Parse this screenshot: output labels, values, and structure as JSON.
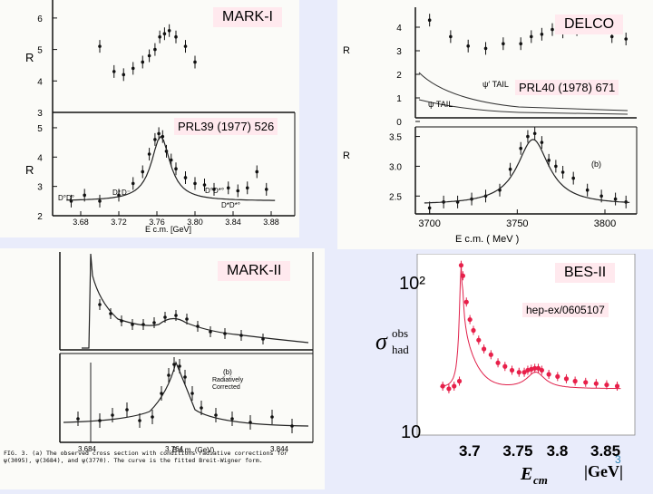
{
  "experiments": {
    "mark1": {
      "label": "MARK-I",
      "reference": "PRL39 (1977) 526",
      "y_axis_symbol": "R",
      "upper_ticks": [
        "6",
        "5",
        "4",
        "3"
      ],
      "lower_ticks": [
        "5",
        "4",
        "3",
        "2"
      ],
      "x_ticks": [
        "3.68",
        "3.72",
        "3.76",
        "3.80",
        "3.84",
        "3.88"
      ],
      "x_label": "E c.m. [GeV]",
      "threshold_labels": [
        "D°D°",
        "D⁺D⁻",
        "D°D*°",
        "D*D*°"
      ]
    },
    "delco": {
      "label": "DELCO",
      "reference": "PRL40 (1978) 671",
      "y_axis_symbol": "R",
      "upper_ticks": [
        "4",
        "3",
        "2",
        "1",
        "0"
      ],
      "tail_labels": [
        "ψ′ TAIL",
        "ψ TAIL"
      ],
      "lower_ticks": [
        "3.5",
        "3.0",
        "2.5"
      ],
      "panel_tag": "(b)",
      "x_ticks": [
        "3700",
        "3750",
        "3800"
      ],
      "x_label": "E c.m.  ( MeV )"
    },
    "mark2": {
      "label": "MARK-II",
      "panel_tag": "(b)",
      "corrected_note": "Radiatively Corrected",
      "x_ticks": [
        "3.684",
        "3.764",
        "3.844"
      ],
      "x_label": "E c.m.  (GeV)",
      "caption": "FIG. 3. (a) The observed cross section with conditions radiative corrections for ψ(3095), ψ(3684), and ψ(3770). The curve is the fitted Breit-Wigner form."
    },
    "bes2": {
      "label": "BES-II",
      "reference": "hep-ex/0605107",
      "y_axis_label": "σ",
      "y_sup": "obs",
      "y_sub": "had",
      "y_ticks": [
        "10²",
        "10"
      ],
      "x_ticks": [
        "3.7",
        "3.75",
        "3.8",
        "3.85"
      ],
      "x_label": "E",
      "x_sub": "cm",
      "x_unit": "|GeV|",
      "page_number": "3"
    }
  },
  "chart_data": [
    {
      "type": "scatter",
      "panel": "MARK-I lower",
      "xlim": [
        3.66,
        3.9
      ],
      "ylim": [
        2,
        5.4
      ],
      "x": [
        3.67,
        3.684,
        3.7,
        3.72,
        3.735,
        3.745,
        3.752,
        3.758,
        3.762,
        3.766,
        3.77,
        3.775,
        3.78,
        3.79,
        3.8,
        3.81,
        3.82,
        3.835,
        3.845,
        3.855,
        3.865,
        3.875
      ],
      "y": [
        2.5,
        2.7,
        2.5,
        2.7,
        3.1,
        3.5,
        4.1,
        4.6,
        4.8,
        4.7,
        4.2,
        3.9,
        3.6,
        3.3,
        3.1,
        3.05,
        2.9,
        2.95,
        2.85,
        2.95,
        3.5,
        2.9
      ]
    },
    {
      "type": "scatter",
      "panel": "MARK-I upper",
      "xlim": [
        3.66,
        3.9
      ],
      "ylim": [
        3,
        6.4
      ],
      "x": [
        3.7,
        3.715,
        3.725,
        3.735,
        3.745,
        3.752,
        3.758,
        3.763,
        3.768,
        3.773,
        3.78,
        3.79,
        3.8
      ],
      "y": [
        5.1,
        4.3,
        4.2,
        4.4,
        4.6,
        4.8,
        5.0,
        5.4,
        5.5,
        5.6,
        5.4,
        5.1,
        4.6
      ]
    },
    {
      "type": "scatter",
      "panel": "DELCO lower",
      "xlim": [
        3695,
        3815
      ],
      "ylim": [
        2.2,
        3.6
      ],
      "x": [
        3700,
        3708,
        3716,
        3724,
        3732,
        3740,
        3746,
        3752,
        3756,
        3760,
        3764,
        3768,
        3772,
        3776,
        3782,
        3790,
        3798,
        3806,
        3812
      ],
      "y": [
        2.3,
        2.4,
        2.4,
        2.45,
        2.5,
        2.6,
        2.95,
        3.3,
        3.5,
        3.55,
        3.4,
        3.1,
        3.0,
        2.9,
        2.8,
        2.6,
        2.5,
        2.45,
        2.4
      ]
    },
    {
      "type": "scatter",
      "panel": "BES-II",
      "xlim": [
        3.64,
        3.88
      ],
      "log_y": true,
      "ylim": [
        10,
        200
      ],
      "x": [
        3.665,
        3.672,
        3.678,
        3.684,
        3.686,
        3.688,
        3.692,
        3.696,
        3.7,
        3.706,
        3.712,
        3.72,
        3.728,
        3.736,
        3.744,
        3.752,
        3.758,
        3.762,
        3.766,
        3.77,
        3.774,
        3.778,
        3.786,
        3.796,
        3.806,
        3.816,
        3.828,
        3.84,
        3.852,
        3.864
      ],
      "y": [
        22,
        21,
        22,
        24,
        180,
        150,
        95,
        70,
        58,
        49,
        42,
        38,
        33,
        31,
        29,
        28,
        28,
        29,
        29.5,
        30,
        30,
        29,
        27,
        26,
        25,
        24,
        23.5,
        23,
        22.5,
        22
      ]
    }
  ]
}
